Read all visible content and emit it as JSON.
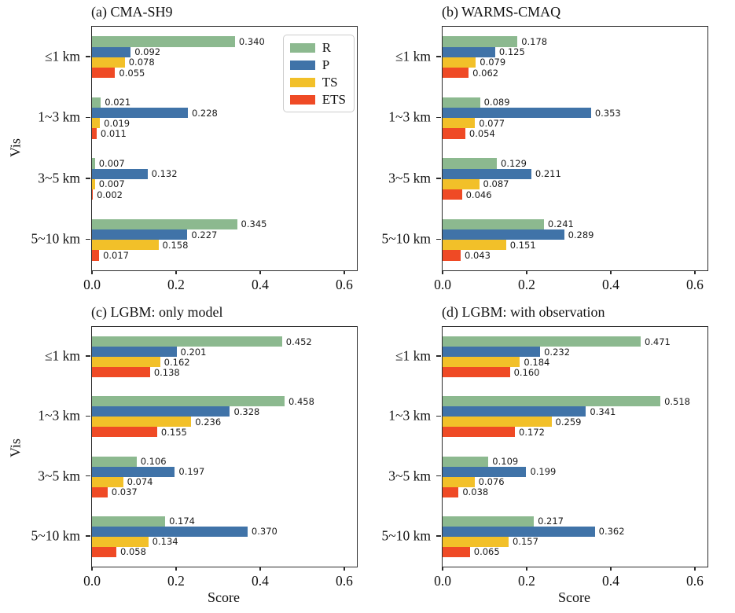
{
  "colors": {
    "R": "#8cb98f",
    "P": "#4073a8",
    "TS": "#f2c029",
    "ETS": "#ef4a25",
    "spine": "#2b2b2b",
    "legend_border": "#cccccc"
  },
  "legend": {
    "entries": [
      {
        "label": "R"
      },
      {
        "label": "P"
      },
      {
        "label": "TS"
      },
      {
        "label": "ETS"
      }
    ]
  },
  "axes": {
    "ylabel": "Vis",
    "xlabel": "Score",
    "xticks": [
      0.0,
      0.2,
      0.4,
      0.6
    ],
    "xlim": [
      0,
      0.63
    ],
    "categories": [
      "≤1 km",
      "1~3 km",
      "3~5 km",
      "5~10 km"
    ],
    "grid": false,
    "legend_position": "upper right of panel (a) only"
  },
  "chart_data": [
    {
      "type": "bar",
      "orientation": "horizontal",
      "title": "(a) CMA-SH9",
      "categories": [
        "≤1 km",
        "1~3 km",
        "3~5 km",
        "5~10 km"
      ],
      "series": [
        {
          "name": "R",
          "values": [
            0.34,
            0.021,
            0.007,
            0.345
          ]
        },
        {
          "name": "P",
          "values": [
            0.092,
            0.228,
            0.132,
            0.227
          ]
        },
        {
          "name": "TS",
          "values": [
            0.078,
            0.019,
            0.007,
            0.158
          ]
        },
        {
          "name": "ETS",
          "values": [
            0.055,
            0.011,
            0.002,
            0.017
          ]
        }
      ],
      "xlabel": "",
      "ylabel": "Vis",
      "xlim": [
        0,
        0.63
      ],
      "xticks": [
        0.0,
        0.2,
        0.4,
        0.6
      ]
    },
    {
      "type": "bar",
      "orientation": "horizontal",
      "title": "(b) WARMS-CMAQ",
      "categories": [
        "≤1 km",
        "1~3 km",
        "3~5 km",
        "5~10 km"
      ],
      "series": [
        {
          "name": "R",
          "values": [
            0.178,
            0.089,
            0.129,
            0.241
          ]
        },
        {
          "name": "P",
          "values": [
            0.125,
            0.353,
            0.211,
            0.289
          ]
        },
        {
          "name": "TS",
          "values": [
            0.079,
            0.077,
            0.087,
            0.151
          ]
        },
        {
          "name": "ETS",
          "values": [
            0.062,
            0.054,
            0.046,
            0.043
          ]
        }
      ],
      "xlabel": "",
      "ylabel": "",
      "xlim": [
        0,
        0.63
      ],
      "xticks": [
        0.0,
        0.2,
        0.4,
        0.6
      ]
    },
    {
      "type": "bar",
      "orientation": "horizontal",
      "title": "(c) LGBM: only model",
      "categories": [
        "≤1 km",
        "1~3 km",
        "3~5 km",
        "5~10 km"
      ],
      "series": [
        {
          "name": "R",
          "values": [
            0.452,
            0.458,
            0.106,
            0.174
          ]
        },
        {
          "name": "P",
          "values": [
            0.201,
            0.328,
            0.197,
            0.37
          ]
        },
        {
          "name": "TS",
          "values": [
            0.162,
            0.236,
            0.074,
            0.134
          ]
        },
        {
          "name": "ETS",
          "values": [
            0.138,
            0.155,
            0.037,
            0.058
          ]
        }
      ],
      "xlabel": "Score",
      "ylabel": "Vis",
      "xlim": [
        0,
        0.63
      ],
      "xticks": [
        0.0,
        0.2,
        0.4,
        0.6
      ]
    },
    {
      "type": "bar",
      "orientation": "horizontal",
      "title": "(d) LGBM: with observation",
      "categories": [
        "≤1 km",
        "1~3 km",
        "3~5 km",
        "5~10 km"
      ],
      "series": [
        {
          "name": "R",
          "values": [
            0.471,
            0.518,
            0.109,
            0.217
          ]
        },
        {
          "name": "P",
          "values": [
            0.232,
            0.341,
            0.199,
            0.362
          ]
        },
        {
          "name": "TS",
          "values": [
            0.184,
            0.259,
            0.076,
            0.157
          ]
        },
        {
          "name": "ETS",
          "values": [
            0.16,
            0.172,
            0.038,
            0.065
          ]
        }
      ],
      "xlabel": "Score",
      "ylabel": "",
      "xlim": [
        0,
        0.63
      ],
      "xticks": [
        0.0,
        0.2,
        0.4,
        0.6
      ]
    }
  ]
}
